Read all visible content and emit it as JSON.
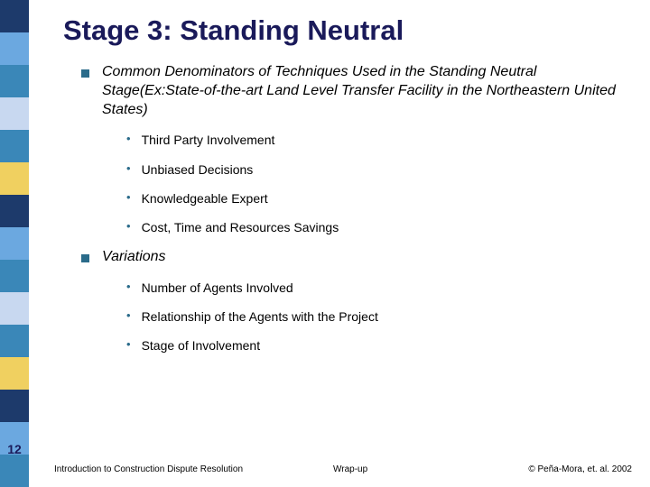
{
  "slide_number": "12",
  "title": "Stage 3: Standing Neutral",
  "sidebar_colors": [
    "#1d3a6b",
    "#6ba8e0",
    "#3a87b8",
    "#c8d8f0",
    "#3a87b8",
    "#f0d060",
    "#1d3a6b",
    "#6ba8e0",
    "#3a87b8",
    "#c8d8f0",
    "#3a87b8",
    "#f0d060",
    "#1d3a6b",
    "#6ba8e0",
    "#3a87b8"
  ],
  "bullets": [
    {
      "text": "Common Denominators of Techniques Used in the Standing Neutral Stage(Ex:State-of-the-art Land Level Transfer Facility in the Northeastern United States)",
      "sub": [
        "Third Party Involvement",
        "Unbiased Decisions",
        " Knowledgeable Expert",
        "Cost, Time and Resources Savings"
      ]
    },
    {
      "text": "Variations",
      "sub": [
        "Number of Agents Involved",
        "Relationship of the Agents with the Project",
        "Stage of Involvement"
      ]
    }
  ],
  "footer": {
    "left": "Introduction to Construction Dispute Resolution",
    "center": "Wrap-up",
    "right": "© Peña-Mora, et. al. 2002"
  }
}
